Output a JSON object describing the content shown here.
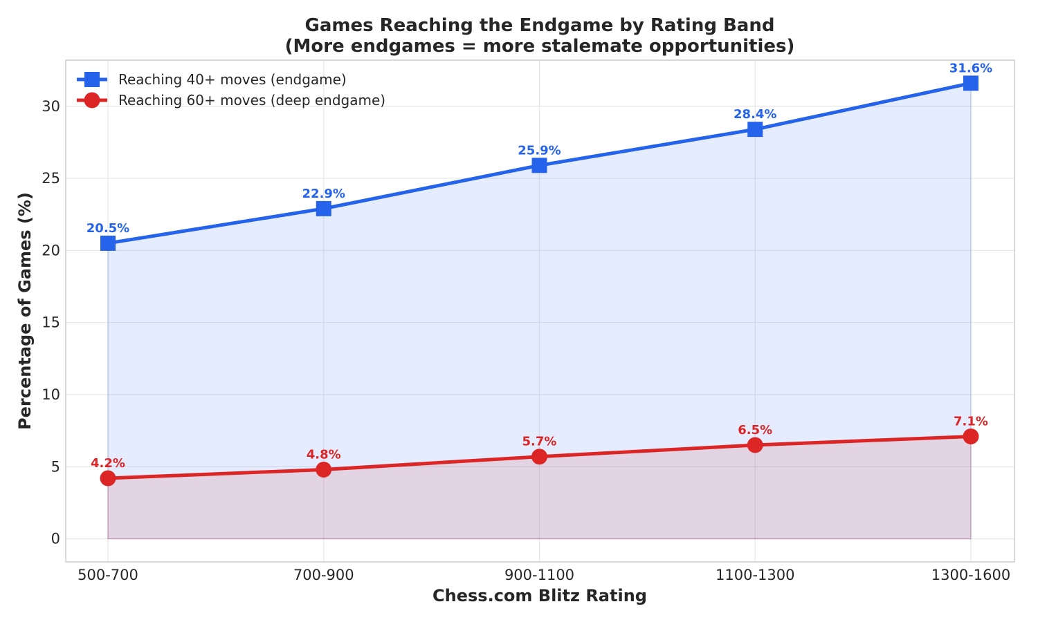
{
  "chart_data": {
    "type": "line",
    "title": "Games Reaching the Endgame by Rating Band",
    "subtitle": "(More endgames = more stalemate opportunities)",
    "xlabel": "Chess.com Blitz Rating",
    "ylabel": "Percentage of Games (%)",
    "categories": [
      "500-700",
      "700-900",
      "900-1100",
      "1100-1300",
      "1300-1600"
    ],
    "ylim": [
      -1.6,
      33.2
    ],
    "yticks": [
      "0",
      "5",
      "10",
      "15",
      "20",
      "25",
      "30"
    ],
    "grid": true,
    "legend_position": "top-left",
    "series": [
      {
        "name": "Reaching 40+ moves (endgame)",
        "values": [
          20.5,
          22.9,
          25.9,
          28.4,
          31.6
        ],
        "labels": [
          "20.5%",
          "22.9%",
          "25.9%",
          "28.4%",
          "31.6%"
        ],
        "color": "#2563eb",
        "marker": "square",
        "fill": true
      },
      {
        "name": "Reaching 60+ moves (deep endgame)",
        "values": [
          4.2,
          4.8,
          5.7,
          6.5,
          7.1
        ],
        "labels": [
          "4.2%",
          "4.8%",
          "5.7%",
          "6.5%",
          "7.1%"
        ],
        "color": "#dc2626",
        "marker": "circle",
        "fill": true
      }
    ]
  }
}
